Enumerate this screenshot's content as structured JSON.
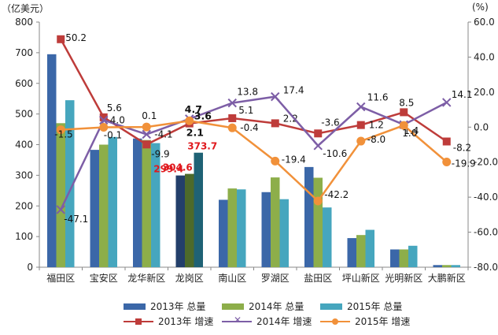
{
  "chart_data": {
    "type": "bar",
    "categories": [
      "福田区",
      "宝安区",
      "龙华新区",
      "龙岗区",
      "南山区",
      "罗湖区",
      "盐田区",
      "坪山新区",
      "光明新区",
      "大鹏新区"
    ],
    "y_left_unit": "（亿美元）",
    "y_right_unit": "(%)",
    "y_left_range": [
      0,
      800
    ],
    "y_left_ticks": [
      "0",
      "100",
      "200",
      "300",
      "400",
      "500",
      "600",
      "700",
      "800"
    ],
    "y_right_range": [
      -80,
      60
    ],
    "y_right_ticks": [
      "-80.0",
      "-60.0",
      "-40.0",
      "-20.0",
      "0.0",
      "20.0",
      "40.0",
      "60.0"
    ],
    "bar_series": [
      {
        "name": "2013年 总量",
        "color": "#3b67a8",
        "values": [
          695,
          383,
          420,
          299.4,
          220,
          245,
          327,
          95,
          58,
          7
        ]
      },
      {
        "name": "2014年 总量",
        "color": "#8dae4a",
        "values": [
          470,
          400,
          415,
          304.6,
          257,
          293,
          292,
          105,
          58,
          7
        ]
      },
      {
        "name": "2015年 总量",
        "color": "#46a6be",
        "values": [
          545,
          425,
          405,
          373.7,
          254,
          222,
          195,
          122,
          70,
          7
        ]
      }
    ],
    "line_series": [
      {
        "name": "2013年 增速",
        "color": "#be3c3a",
        "marker": "square",
        "values": [
          50.2,
          5.6,
          -9.9,
          2.1,
          5.1,
          2.2,
          -3.6,
          1.2,
          8.5,
          -8.2
        ],
        "labels": [
          "50.2",
          "5.6",
          "-9.9",
          "2.1",
          "5.1",
          "2.2",
          "-3.6",
          "1.2",
          "8.5",
          "-8.2"
        ]
      },
      {
        "name": "2014年 增速",
        "color": "#7d5ea6",
        "marker": "x",
        "values": [
          -47.1,
          4.0,
          -4.1,
          4.7,
          13.8,
          17.4,
          -10.6,
          11.6,
          1.4,
          14.1
        ],
        "labels": [
          "-47.1",
          "4.0",
          "-4.1",
          "4.7",
          "13.8",
          "17.4",
          "-10.6",
          "11.6",
          "1.4",
          "14.1"
        ]
      },
      {
        "name": "2015年 增速",
        "color": "#f1913a",
        "marker": "circle",
        "values": [
          -1.5,
          -0.1,
          0.1,
          3.6,
          -0.4,
          -19.4,
          -42.2,
          -8.0,
          1.0,
          -19.9
        ],
        "labels": [
          "-1.5",
          "-0.1",
          "0.1",
          "3.6",
          "-0.4",
          "-19.4",
          "-42.2",
          "-8.0",
          "1.0",
          "-19.9"
        ]
      }
    ],
    "highlight": {
      "category": "龙岗区",
      "bar_labels": [
        "299.4",
        "304.6",
        "373.7"
      ],
      "bar_label_color": "#e0191e",
      "bar_colors": [
        "#233f6a",
        "#4d6a2a",
        "#1f6275"
      ]
    },
    "legend": "bottom",
    "grid": false
  }
}
